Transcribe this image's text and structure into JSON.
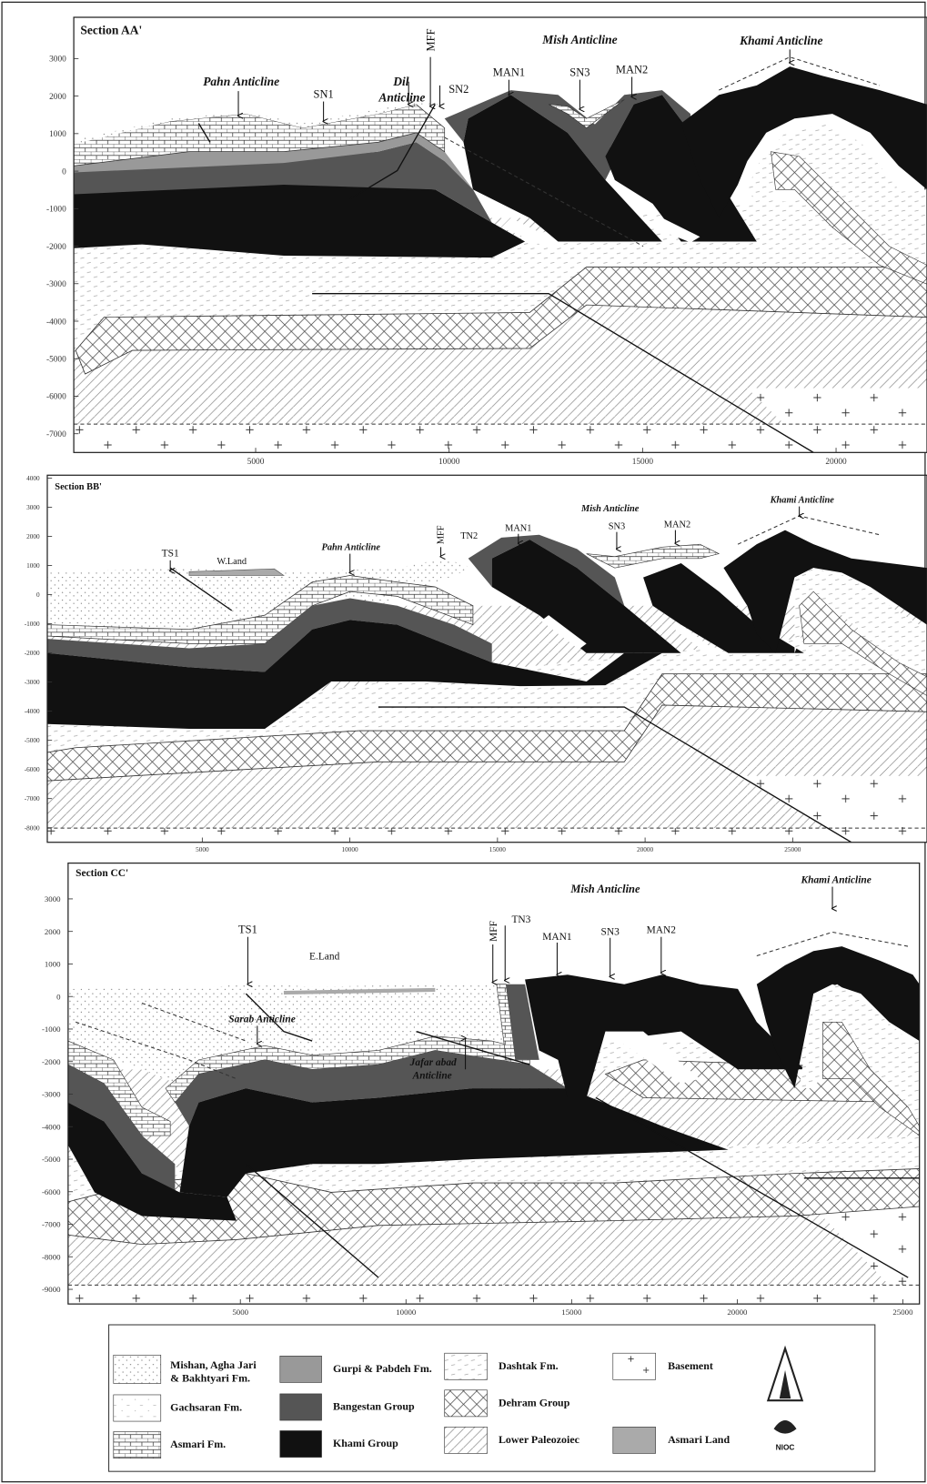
{
  "panels": [
    {
      "title": "Section AA'",
      "labels": [
        "Pahn Anticline",
        "SN1",
        "Dil",
        "Anticline",
        "MFF",
        "SN2",
        "Mish Anticline",
        "MAN1",
        "SN3",
        "MAN2",
        "Khami Anticline"
      ],
      "ylim": [
        -7500,
        4100
      ],
      "yticks": [
        3000,
        2000,
        1000,
        0,
        -1000,
        -2000,
        -3000,
        -4000,
        -5000,
        -6000,
        -7000
      ],
      "xlim": [
        300,
        22350
      ],
      "xticks": [
        5000,
        10000,
        15000,
        20000
      ]
    },
    {
      "title": "Section BB'",
      "labels": [
        "TS1",
        "W.Land",
        "Pahn Anticline",
        "MFF",
        "TN2",
        "MAN1",
        "Mish  Anticline",
        "SN3",
        "MAN2",
        "Khami Anticline"
      ],
      "ylim": [
        -8500,
        4100
      ],
      "yticks": [
        4000,
        3000,
        2000,
        1000,
        0,
        -1000,
        -2000,
        -3000,
        -4000,
        -5000,
        -6000,
        -7000,
        -8000
      ],
      "xlim": [
        -250,
        29550
      ],
      "xticks": [
        5000,
        10000,
        15000,
        20000,
        25000
      ]
    },
    {
      "title": "Section CC'",
      "labels": [
        "Mish Anticline",
        "Khami Anticline",
        "TS1",
        "E.Land",
        "MFF",
        "TN3",
        "MAN1",
        "SN3",
        "MAN2",
        "Sarab Anticline",
        "Jafar abad",
        "Anticline"
      ],
      "ylim": [
        -9450,
        4100
      ],
      "yticks": [
        3000,
        2000,
        1000,
        0,
        -1000,
        -2000,
        -3000,
        -4000,
        -5000,
        -6000,
        -7000,
        -8000,
        -9000
      ],
      "xlim": [
        -200,
        25500
      ],
      "xticks": [
        5000,
        10000,
        15000,
        20000,
        25000
      ]
    }
  ],
  "legend": {
    "items": [
      {
        "lines": [
          "Mishan, Agha Jari",
          "& Bakhtyari Fm."
        ]
      },
      {
        "lines": [
          "Gachsaran Fm."
        ]
      },
      {
        "lines": [
          "Asmari Fm."
        ]
      },
      {
        "lines": [
          "Gurpi & Pabdeh Fm."
        ]
      },
      {
        "lines": [
          "Bangestan Group"
        ]
      },
      {
        "lines": [
          "Khami Group"
        ]
      },
      {
        "lines": [
          "Dashtak Fm."
        ]
      },
      {
        "lines": [
          "Dehram Group"
        ]
      },
      {
        "lines": [
          "Lower Paleozoiec"
        ]
      },
      {
        "lines": [
          "Basement"
        ]
      },
      {
        "lines": [
          "Asmari Land"
        ]
      }
    ],
    "logo": "NIOC"
  }
}
